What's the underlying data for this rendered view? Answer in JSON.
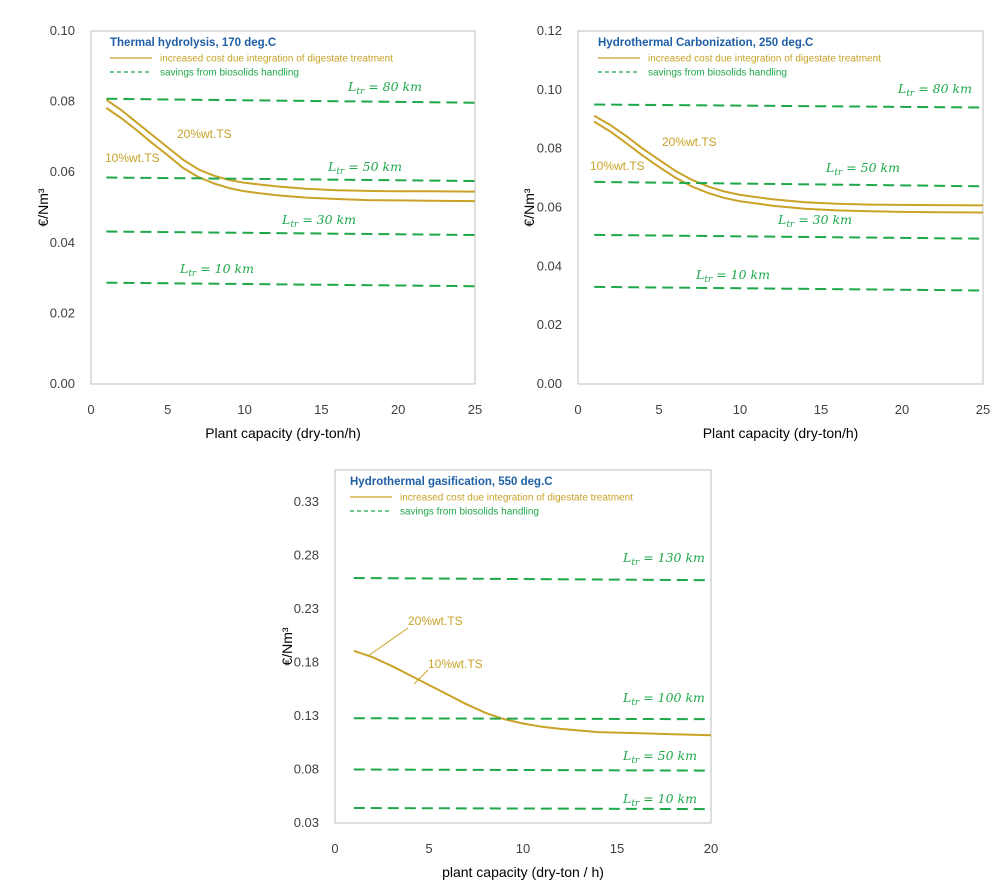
{
  "chart_data": [
    {
      "type": "line",
      "title": "Thermal hydrolysis, 170 deg.C",
      "xlabel": "Plant capacity (dry-ton/h)",
      "ylabel": "€/Nm³",
      "xlim": [
        0,
        25
      ],
      "ylim": [
        0,
        0.1
      ],
      "xticks": [
        "0",
        "5",
        "10",
        "15",
        "20",
        "25"
      ],
      "yticks": [
        "0.00",
        "0.02",
        "0.04",
        "0.06",
        "0.08",
        "0.10"
      ],
      "legend": [
        {
          "label": "increased cost due integration of digestate treatment",
          "style": "solid",
          "color": "#c9a227"
        },
        {
          "label": "savings from biosolids handling",
          "style": "dashed",
          "color": "#1ea84a"
        }
      ],
      "series": [
        {
          "name": "20%wt.TS",
          "style": "solid",
          "color": "#c9a227",
          "x": [
            1,
            2,
            3,
            4,
            5,
            6,
            7,
            8,
            9,
            10,
            12,
            14,
            16,
            18,
            20,
            22,
            25
          ],
          "values": [
            0.0805,
            0.0775,
            0.074,
            0.0705,
            0.067,
            0.0635,
            0.0608,
            0.059,
            0.0578,
            0.057,
            0.056,
            0.0553,
            0.0549,
            0.0547,
            0.0546,
            0.0546,
            0.0545
          ]
        },
        {
          "name": "10%wt.TS",
          "style": "solid",
          "color": "#c9a227",
          "x": [
            1,
            2,
            3,
            4,
            5,
            6,
            7,
            8,
            9,
            10,
            12,
            14,
            16,
            18,
            20,
            22,
            25
          ],
          "values": [
            0.0782,
            0.0752,
            0.0718,
            0.0682,
            0.0648,
            0.0612,
            0.0586,
            0.0568,
            0.0555,
            0.0546,
            0.0535,
            0.0528,
            0.0524,
            0.0521,
            0.052,
            0.0519,
            0.0518
          ]
        },
        {
          "name": "L_tr = 80 km",
          "label_main": "L",
          "label_sub": "tr",
          "label_rest": " = 80 km",
          "style": "dashed",
          "color": "#1ea84a",
          "x": [
            1,
            25
          ],
          "values": [
            0.0808,
            0.0797
          ]
        },
        {
          "name": "L_tr = 50 km",
          "label_main": "L",
          "label_sub": "tr",
          "label_rest": " = 50 km",
          "style": "dashed",
          "color": "#1ea84a",
          "x": [
            1,
            25
          ],
          "values": [
            0.0585,
            0.0575
          ]
        },
        {
          "name": "L_tr = 30 km",
          "label_main": "L",
          "label_sub": "tr",
          "label_rest": " = 30 km",
          "style": "dashed",
          "color": "#1ea84a",
          "x": [
            1,
            25
          ],
          "values": [
            0.0432,
            0.0422
          ]
        },
        {
          "name": "L_tr = 10 km",
          "label_main": "L",
          "label_sub": "tr",
          "label_rest": " = 10 km",
          "style": "dashed",
          "color": "#1ea84a",
          "x": [
            1,
            25
          ],
          "values": [
            0.0287,
            0.0277
          ]
        }
      ],
      "annotations": [
        "20%wt.TS",
        "10%wt.TS"
      ]
    },
    {
      "type": "line",
      "title": "Hydrothermal Carbonization, 250 deg.C",
      "xlabel": "Plant capacity (dry-ton/h)",
      "ylabel": "€/Nm³",
      "xlim": [
        0,
        25
      ],
      "ylim": [
        0,
        0.12
      ],
      "xticks": [
        "0",
        "5",
        "10",
        "15",
        "20",
        "25"
      ],
      "yticks": [
        "0.00",
        "0.02",
        "0.04",
        "0.06",
        "0.08",
        "0.10",
        "0.12"
      ],
      "legend": [
        {
          "label": "increased cost due integration of digestate treatment",
          "style": "solid",
          "color": "#c9a227"
        },
        {
          "label": "savings from biosolids handling",
          "style": "dashed",
          "color": "#1ea84a"
        }
      ],
      "series": [
        {
          "name": "20%wt.TS",
          "style": "solid",
          "color": "#c9a227",
          "x": [
            1,
            2,
            3,
            4,
            5,
            6,
            7,
            8,
            9,
            10,
            12,
            14,
            16,
            18,
            20,
            22,
            25
          ],
          "values": [
            0.0912,
            0.088,
            0.0842,
            0.08,
            0.0762,
            0.0725,
            0.0695,
            0.0672,
            0.0655,
            0.0643,
            0.0628,
            0.0618,
            0.0613,
            0.061,
            0.0609,
            0.0608,
            0.0607
          ]
        },
        {
          "name": "10%wt.TS",
          "style": "solid",
          "color": "#c9a227",
          "x": [
            1,
            2,
            3,
            4,
            5,
            6,
            7,
            8,
            9,
            10,
            12,
            14,
            16,
            18,
            20,
            22,
            25
          ],
          "values": [
            0.0892,
            0.0858,
            0.0818,
            0.0776,
            0.0738,
            0.0702,
            0.0672,
            0.065,
            0.0633,
            0.0621,
            0.0606,
            0.0596,
            0.059,
            0.0587,
            0.0585,
            0.0584,
            0.0583
          ]
        },
        {
          "name": "L_tr = 80 km",
          "label_main": "L",
          "label_sub": "tr",
          "label_rest": " = 80 km",
          "style": "dashed",
          "color": "#1ea84a",
          "x": [
            1,
            25
          ],
          "values": [
            0.095,
            0.094
          ]
        },
        {
          "name": "L_tr = 50 km",
          "label_main": "L",
          "label_sub": "tr",
          "label_rest": " = 50 km",
          "style": "dashed",
          "color": "#1ea84a",
          "x": [
            1,
            25
          ],
          "values": [
            0.0687,
            0.0672
          ]
        },
        {
          "name": "L_tr = 30 km",
          "label_main": "L",
          "label_sub": "tr",
          "label_rest": " = 30 km",
          "style": "dashed",
          "color": "#1ea84a",
          "x": [
            1,
            25
          ],
          "values": [
            0.0507,
            0.0494
          ]
        },
        {
          "name": "L_tr = 10 km",
          "label_main": "L",
          "label_sub": "tr",
          "label_rest": " = 10 km",
          "style": "dashed",
          "color": "#1ea84a",
          "x": [
            1,
            25
          ],
          "values": [
            0.033,
            0.0318
          ]
        }
      ],
      "annotations": [
        "20%wt.TS",
        "10%wt.TS"
      ]
    },
    {
      "type": "line",
      "title": "Hydrothermal gasification, 550 deg.C",
      "xlabel": "plant capacity (dry-ton / h)",
      "ylabel": "€/Nm³",
      "xlim": [
        0,
        20
      ],
      "ylim": [
        0.03,
        0.36
      ],
      "xticks": [
        "0",
        "5",
        "10",
        "15",
        "20"
      ],
      "yticks": [
        "0.03",
        "0.08",
        "0.13",
        "0.18",
        "0.23",
        "0.28",
        "0.33"
      ],
      "legend": [
        {
          "label": "increased cost due integration of digestate treatment",
          "style": "solid",
          "color": "#c9a227"
        },
        {
          "label": "savings from biosolids handling",
          "style": "dashed",
          "color": "#1ea84a"
        }
      ],
      "series": [
        {
          "name": "20%wt.TS / 10%wt.TS",
          "style": "solid",
          "color": "#c9a227",
          "x": [
            1,
            2,
            3,
            4,
            5,
            6,
            7,
            8,
            9,
            10,
            11,
            12,
            14,
            16,
            18,
            20
          ],
          "values": [
            0.191,
            0.185,
            0.177,
            0.168,
            0.159,
            0.15,
            0.141,
            0.133,
            0.127,
            0.123,
            0.12,
            0.118,
            0.115,
            0.114,
            0.113,
            0.112
          ]
        },
        {
          "name": "L_tr = 130 km",
          "label_main": "L",
          "label_sub": "tr",
          "label_rest": " = 130 km",
          "style": "dashed",
          "color": "#1ea84a",
          "x": [
            1,
            20
          ],
          "values": [
            0.259,
            0.257
          ]
        },
        {
          "name": "L_tr = 100 km",
          "label_main": "L",
          "label_sub": "tr",
          "label_rest": " = 100 km",
          "style": "dashed",
          "color": "#1ea84a",
          "x": [
            1,
            20
          ],
          "values": [
            0.128,
            0.127
          ]
        },
        {
          "name": "L_tr = 50 km",
          "label_main": "L",
          "label_sub": "tr",
          "label_rest": " = 50 km",
          "style": "dashed",
          "color": "#1ea84a",
          "x": [
            1,
            20
          ],
          "values": [
            0.08,
            0.079
          ]
        },
        {
          "name": "L_tr = 10 km",
          "label_main": "L",
          "label_sub": "tr",
          "label_rest": " = 10 km",
          "style": "dashed",
          "color": "#1ea84a",
          "x": [
            1,
            20
          ],
          "values": [
            0.044,
            0.043
          ]
        }
      ],
      "annotations": [
        "20%wt.TS",
        "10%wt.TS"
      ]
    }
  ]
}
